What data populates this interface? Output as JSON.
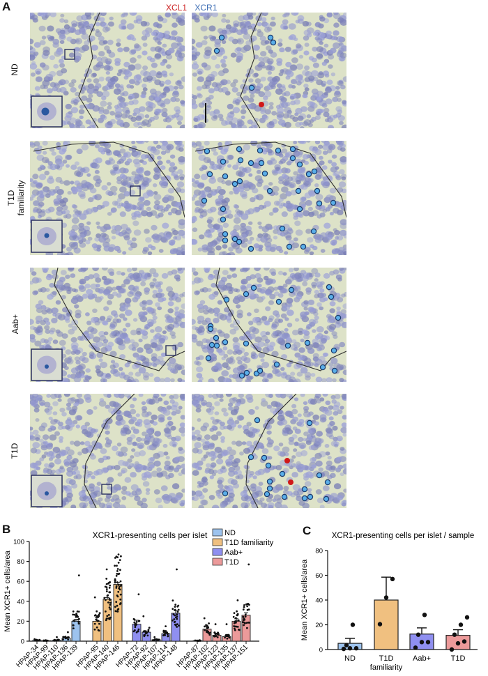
{
  "figure": {
    "panel_a": {
      "letter": "A",
      "stain_legend": [
        {
          "label": "XCL1",
          "color": "#cc1f1f"
        },
        {
          "label": "XCR1",
          "color": "#3f6fb5"
        }
      ],
      "rows": [
        {
          "label": "ND",
          "xcr1_dots": 5,
          "xcl1_dots": 1
        },
        {
          "label": "T1D familiarity",
          "label_lines": [
            "T1D",
            "familiarity"
          ],
          "xcr1_dots": 36,
          "xcl1_dots": 0
        },
        {
          "label": "Aab+",
          "xcr1_dots": 26,
          "xcl1_dots": 0
        },
        {
          "label": "T1D",
          "xcr1_dots": 17,
          "xcl1_dots": 2
        }
      ],
      "dot_colors": {
        "xcr1_fill": "#5aaee8",
        "xcr1_stroke": "#1b3a6b",
        "xcl1_fill": "#d01818"
      }
    },
    "panel_b": {
      "letter": "B"
    },
    "panel_c": {
      "letter": "C"
    }
  },
  "chart_data": [
    {
      "type": "bar",
      "panel": "B",
      "title": "XCR1-presenting cells per islet",
      "xlabel": "",
      "ylabel": "Mean XCR1+ cells/area",
      "ylim": [
        0,
        100
      ],
      "yticks": [
        0,
        20,
        40,
        60,
        80,
        100
      ],
      "grid": false,
      "legend_position": "top-right",
      "legend": [
        {
          "label": "ND",
          "color": "#9dc3ee"
        },
        {
          "label": "T1D familiarity",
          "color": "#f0c080"
        },
        {
          "label": "Aab+",
          "color": "#8f8ff0"
        },
        {
          "label": "T1D",
          "color": "#ec9a9a"
        }
      ],
      "categories": [
        "HPAP-34",
        "HPAP-99",
        "HPAP-110",
        "HPAP-136",
        "HPAP-139",
        "HPAP-95",
        "HPAP-140",
        "HPAP-146",
        "HPAP-72",
        "HPAP-92",
        "HPAP-107",
        "HPAP-114",
        "HPAP-148",
        "HPAP-87",
        "HPAP-102",
        "HPAP-123",
        "HPAP-135",
        "HPAP-137",
        "HPAP-151"
      ],
      "groups": [
        "ND",
        "ND",
        "ND",
        "ND",
        "ND",
        "T1D familiarity",
        "T1D familiarity",
        "T1D familiarity",
        "Aab+",
        "Aab+",
        "Aab+",
        "Aab+",
        "Aab+",
        "T1D",
        "T1D",
        "T1D",
        "T1D",
        "T1D",
        "T1D"
      ],
      "values": [
        1,
        0.5,
        1,
        3,
        20,
        20,
        42,
        57,
        17,
        9,
        1.5,
        7.5,
        28,
        0.5,
        12,
        6,
        4.5,
        20,
        26
      ],
      "sem": [
        0.3,
        0.3,
        0.4,
        0.8,
        2,
        3.5,
        1.8,
        2,
        4,
        1.2,
        0.5,
        1.5,
        2.5,
        0.2,
        2.5,
        1.5,
        1.2,
        2.5,
        2.5
      ],
      "max_point": [
        2,
        1,
        4,
        9,
        66,
        44,
        72,
        87,
        47,
        25,
        4,
        15,
        72,
        1,
        23,
        17,
        17,
        41,
        77
      ]
    },
    {
      "type": "bar",
      "panel": "C",
      "title": "XCR1-presenting cells per islet / sample",
      "xlabel": "",
      "ylabel": "Mean XCR1+ cells/area",
      "ylim": [
        0,
        80
      ],
      "yticks": [
        0,
        20,
        40,
        60,
        80
      ],
      "grid": false,
      "categories": [
        "ND",
        "T1D familiarity",
        " Aab+",
        "T1D"
      ],
      "category_labels": [
        [
          "ND"
        ],
        [
          "T1D",
          "familiarity"
        ],
        [
          "Aab+"
        ],
        [
          "T1D"
        ]
      ],
      "colors": [
        "#9dc3ee",
        "#f0c080",
        "#8f8ff0",
        "#ec9a9a"
      ],
      "values": [
        5,
        40,
        12.5,
        11.5
      ],
      "sem": [
        4,
        18.5,
        5,
        4.5
      ],
      "points": [
        [
          0.5,
          1,
          1,
          3.5,
          20
        ],
        [
          20.5,
          42,
          57
        ],
        [
          1.5,
          6,
          6,
          12,
          28
        ],
        [
          0,
          5,
          6.5,
          12,
          20,
          26
        ]
      ]
    }
  ]
}
